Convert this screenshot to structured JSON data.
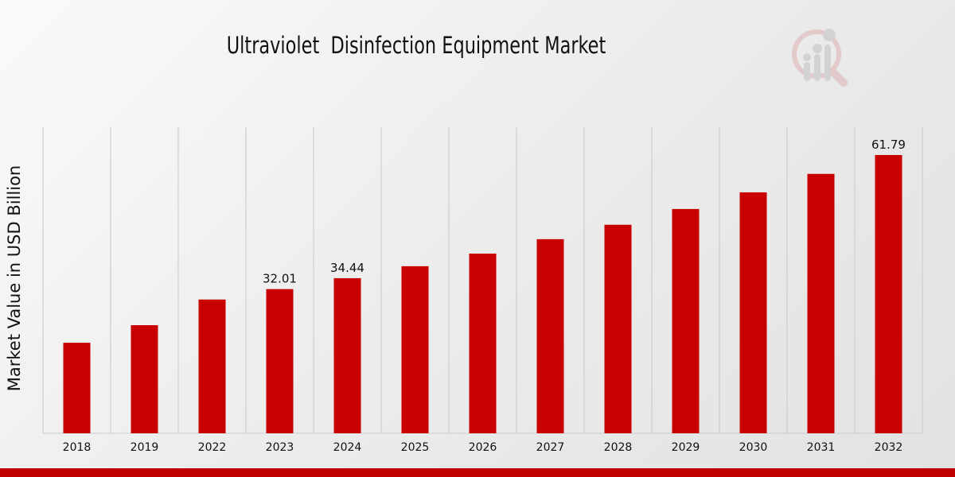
{
  "chart_data": {
    "type": "bar",
    "title": "Ultraviolet  Disinfection Equipment Market",
    "xlabel": "",
    "ylabel": "Market Value in USD Billion",
    "categories": [
      "2018",
      "2019",
      "2022",
      "2023",
      "2024",
      "2025",
      "2026",
      "2027",
      "2028",
      "2029",
      "2030",
      "2031",
      "2032"
    ],
    "values": [
      20.1,
      24.0,
      29.7,
      32.01,
      34.44,
      37.1,
      39.9,
      43.1,
      46.3,
      49.8,
      53.5,
      57.6,
      61.79
    ],
    "data_labels": {
      "2023": "32.01",
      "2024": "34.44",
      "2032": "61.79"
    },
    "ylim": [
      0,
      68
    ],
    "grid": "vertical",
    "bar_color": "#c80000",
    "accent_color": "#c00000"
  }
}
